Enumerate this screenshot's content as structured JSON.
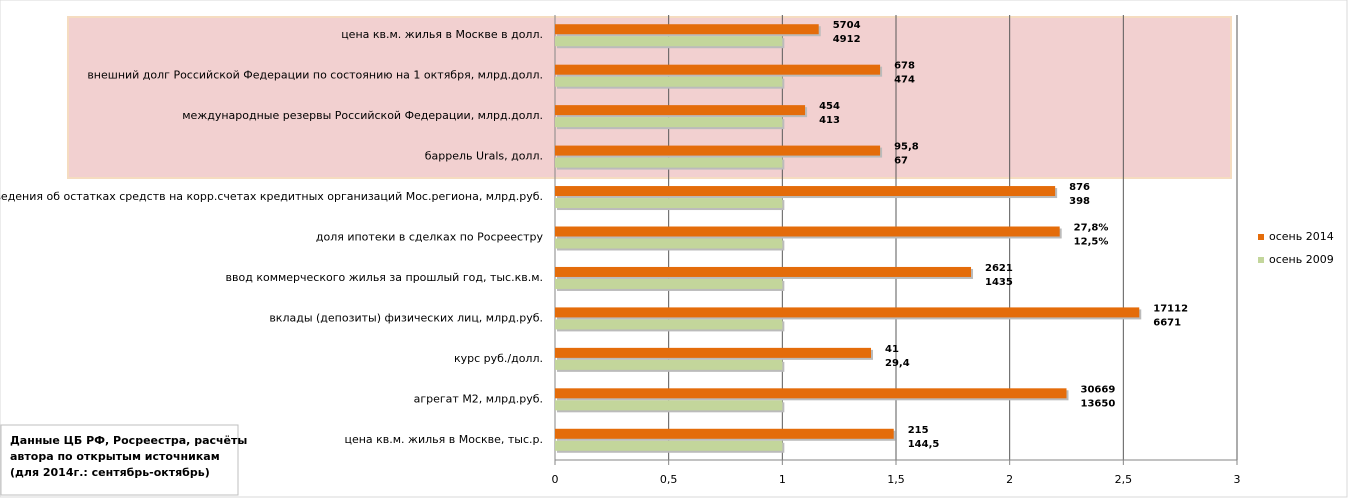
{
  "chart_data": {
    "type": "bar",
    "orientation": "horizontal",
    "categories": [
      "цена кв.м. жилья в Москве в долл.",
      "внешний долг Российской Федерации по состоянию на 1 октября,  млрд.долл.",
      "международные резервы Российской Федерации, млрд.долл.",
      "баррель Urals, долл.",
      "сведения об остатках средств на корр.счетах кредитных организаций Мос.региона, млрд.руб.",
      "доля ипотеки в сделках по Росреестру",
      "ввод коммерческого жилья за прошлый год, тыс.кв.м.",
      "вклады (депозиты) физических лиц, млрд.руб.",
      "курс руб./долл.",
      "агрегат М2, млрд.руб.",
      "цена кв.м. жилья в Москве, тыс.р."
    ],
    "series": [
      {
        "name": "осень 2014",
        "color": "#e46c0a",
        "values": [
          1.16,
          1.43,
          1.1,
          1.43,
          2.2,
          2.22,
          1.83,
          2.57,
          1.39,
          2.25,
          1.49
        ],
        "data_labels": [
          "5704",
          "678",
          "454",
          "95,8",
          "876",
          "27,8%",
          "2621",
          "17112",
          "41",
          "30669",
          "215"
        ]
      },
      {
        "name": "осень 2009",
        "color": "#c3d69b",
        "values": [
          1,
          1,
          1,
          1,
          1,
          1,
          1,
          1,
          1,
          1,
          1
        ],
        "data_labels": [
          "4912",
          "474",
          "413",
          "67",
          "398",
          "12,5%",
          "1435",
          "6671",
          "29,4",
          "13650",
          "144,5"
        ]
      }
    ],
    "xlim": [
      0,
      3
    ],
    "xticks": [
      0,
      {
        "value": 0.5,
        "label": "0,5"
      },
      1,
      {
        "value": 1.5,
        "label": "1,5"
      },
      2,
      {
        "value": 2.5,
        "label": "2,5"
      },
      3
    ],
    "grid": true,
    "legend": "right",
    "note": [
      "Данные ЦБ РФ, Росреестра, расчёты",
      "автора по открытым источникам",
      "(для 2014г.: сентябрь-октябрь)"
    ]
  }
}
